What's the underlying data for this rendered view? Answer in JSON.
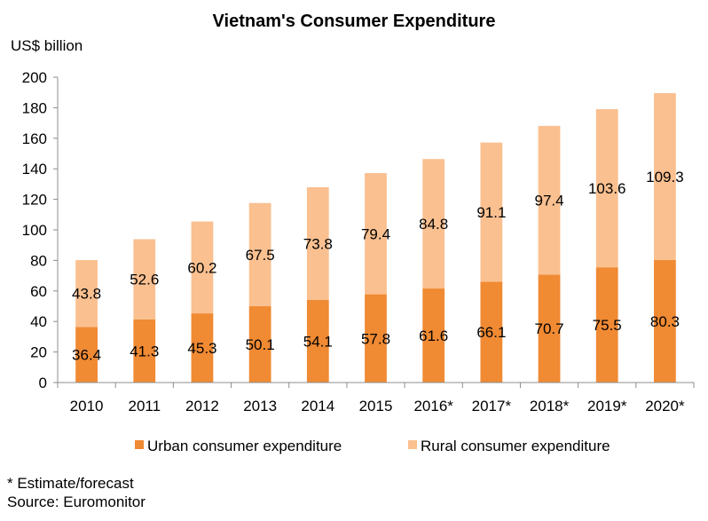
{
  "chart_data": {
    "type": "bar",
    "stacked": true,
    "title": "Vietnam's Consumer Expenditure",
    "ylabel": "US$ billion",
    "xlabel": "",
    "categories": [
      "2010",
      "2011",
      "2012",
      "2013",
      "2014",
      "2015",
      "2016*",
      "2017*",
      "2018*",
      "2019*",
      "2020*"
    ],
    "series": [
      {
        "name": "Urban consumer expenditure",
        "color": "#f08a33",
        "values": [
          36.4,
          41.3,
          45.3,
          50.1,
          54.1,
          57.8,
          61.6,
          66.1,
          70.7,
          75.5,
          80.3
        ]
      },
      {
        "name": "Rural consumer expenditure",
        "color": "#fac090",
        "values": [
          43.8,
          52.6,
          60.2,
          67.5,
          73.8,
          79.4,
          84.8,
          91.1,
          97.4,
          103.6,
          109.3
        ]
      }
    ],
    "ylim": [
      0,
      200
    ],
    "yticks": [
      0,
      20,
      40,
      60,
      80,
      100,
      120,
      140,
      160,
      180,
      200
    ],
    "grid": false,
    "legend_position": "bottom",
    "data_labels": true
  },
  "notes": {
    "estimate": "* Estimate/forecast",
    "source": "Source: Euromonitor"
  }
}
